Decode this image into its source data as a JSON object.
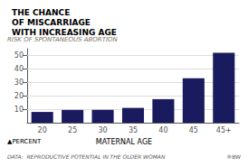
{
  "chart_data": {
    "type": "bar",
    "title": "THE CHANCE\nOF MISCARRIAGE\nWITH INCREASING AGE",
    "xlabel": "MATERNAL AGE",
    "annotations": [
      "RISK OF SPONTANEOUS ABORTION",
      "▲PERCENT",
      "DATA:  REPRODUCTIVE POTENTIAL IN THE OLDER WOMAN",
      "®BW"
    ],
    "categories": [
      "20",
      "25",
      "30",
      "35",
      "40",
      "45",
      "45+"
    ],
    "values": [
      8,
      9.5,
      9.5,
      11,
      17.5,
      33,
      52
    ],
    "color": "#1a1a5e",
    "ylim": [
      0,
      55
    ],
    "yticks": [
      10,
      20,
      30,
      40,
      50
    ],
    "grid": true
  }
}
